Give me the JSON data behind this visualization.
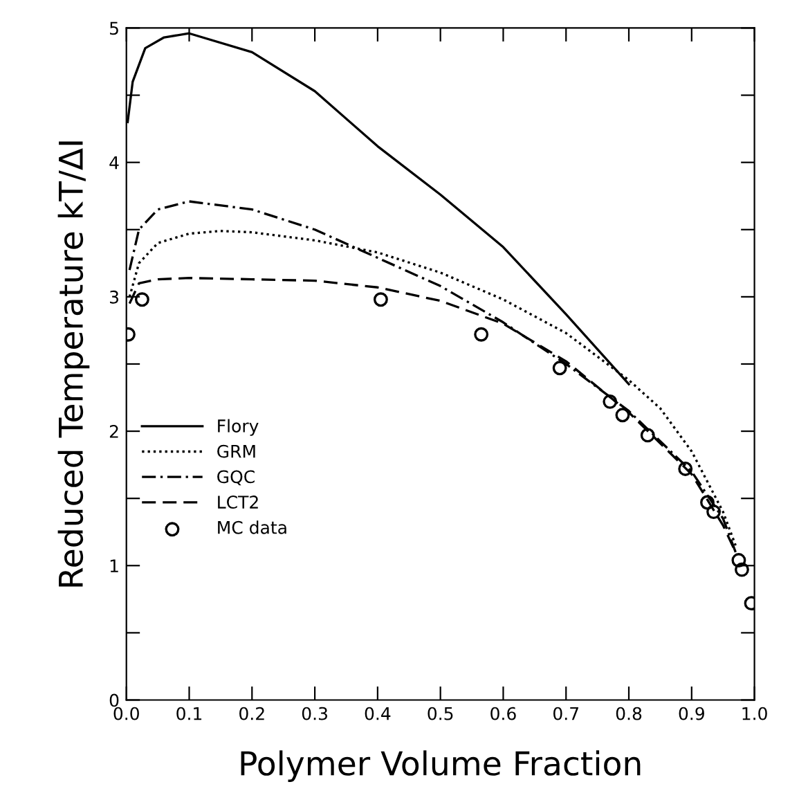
{
  "chart_data": {
    "type": "line",
    "xlabel": "Polymer Volume Fraction",
    "ylabel": "Reduced Temperature kT/ΔI",
    "xlim": [
      0,
      1
    ],
    "ylim": [
      0,
      5
    ],
    "xticks": [
      {
        "value": 0,
        "label": "0.0"
      },
      0.1,
      0.2,
      0.3,
      0.4,
      0.5,
      0.6,
      0.7,
      0.8,
      0.9,
      {
        "value": 1,
        "label": "1.0"
      }
    ],
    "yticks": [
      0,
      {
        "value": 0.5,
        "label": null
      },
      1,
      {
        "value": 1.5,
        "label": null
      },
      2,
      {
        "value": 2.5,
        "label": null
      },
      3,
      {
        "value": 3.5,
        "label": null
      },
      4,
      {
        "value": 4.5,
        "label": null
      },
      5
    ],
    "legend": "left",
    "grid": false,
    "series": [
      {
        "name": "Flory",
        "color": "#000000",
        "line_style": "solid",
        "marker": "none",
        "x": [
          0.002,
          0.01,
          0.03,
          0.06,
          0.1,
          0.2,
          0.3,
          0.4,
          0.5,
          0.6,
          0.7,
          0.8
        ],
        "values": [
          4.3,
          4.6,
          4.85,
          4.93,
          4.96,
          4.82,
          4.53,
          4.12,
          3.76,
          3.37,
          2.87,
          2.35
        ]
      },
      {
        "name": "GRM",
        "color": "#000000",
        "line_style": "dotted",
        "marker": "none",
        "x": [
          0.005,
          0.02,
          0.05,
          0.1,
          0.15,
          0.2,
          0.3,
          0.4,
          0.5,
          0.6,
          0.7,
          0.8,
          0.85,
          0.9,
          0.95,
          0.97
        ],
        "values": [
          3.0,
          3.25,
          3.4,
          3.47,
          3.49,
          3.48,
          3.42,
          3.33,
          3.18,
          2.98,
          2.73,
          2.38,
          2.17,
          1.85,
          1.4,
          1.15
        ]
      },
      {
        "name": "GQC",
        "color": "#000000",
        "line_style": "dashdot",
        "marker": "none",
        "x": [
          0.005,
          0.02,
          0.05,
          0.1,
          0.2,
          0.3,
          0.4,
          0.5,
          0.6,
          0.7,
          0.8,
          0.9,
          0.95,
          0.97
        ],
        "values": [
          3.2,
          3.5,
          3.65,
          3.71,
          3.65,
          3.5,
          3.29,
          3.08,
          2.81,
          2.5,
          2.15,
          1.7,
          1.35,
          1.1
        ]
      },
      {
        "name": "LCT2",
        "color": "#000000",
        "line_style": "dashed",
        "marker": "none",
        "x": [
          0.005,
          0.02,
          0.05,
          0.1,
          0.2,
          0.3,
          0.4,
          0.5,
          0.6,
          0.7,
          0.8,
          0.9,
          0.95,
          0.97
        ],
        "values": [
          2.95,
          3.1,
          3.13,
          3.14,
          3.13,
          3.12,
          3.07,
          2.97,
          2.8,
          2.52,
          2.14,
          1.68,
          1.3,
          1.1
        ]
      },
      {
        "name": "MC data",
        "type": "scatter",
        "color": "#000000",
        "marker": "circle",
        "x": [
          0.003,
          0.025,
          0.405,
          0.565,
          0.69,
          0.77,
          0.79,
          0.83,
          0.89,
          0.925,
          0.935,
          0.975,
          0.98,
          0.995
        ],
        "values": [
          2.72,
          2.98,
          2.98,
          2.72,
          2.47,
          2.22,
          2.12,
          1.97,
          1.72,
          1.47,
          1.4,
          1.04,
          0.97,
          0.72
        ]
      }
    ]
  }
}
